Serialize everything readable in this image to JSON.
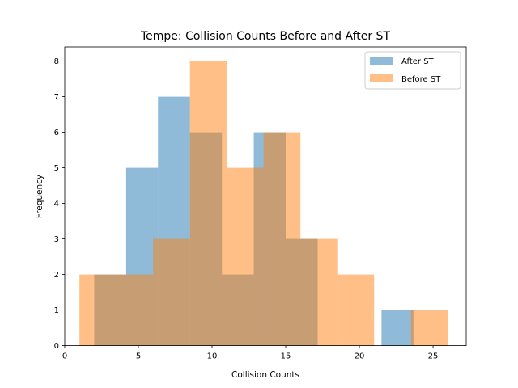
{
  "chart_data": {
    "type": "bar",
    "title": "Tempe: Collision Counts Before and After ST",
    "xlabel": "Collision Counts",
    "ylabel": "Frequency",
    "xlim": [
      0.0,
      27.25
    ],
    "ylim": [
      0,
      8.4
    ],
    "xticks": [
      0,
      5,
      10,
      15,
      20,
      25
    ],
    "yticks": [
      0,
      1,
      2,
      3,
      4,
      5,
      6,
      7,
      8
    ],
    "legend_position": "top-right",
    "series": [
      {
        "name": "After ST",
        "color": "#1f77b4",
        "alpha": 0.5,
        "bin_edges": [
          2.0,
          4.17,
          6.33,
          8.5,
          10.67,
          12.83,
          15.0,
          17.17,
          19.33,
          21.5,
          23.67
        ],
        "counts": [
          2,
          5,
          7,
          6,
          2,
          6,
          3,
          0,
          0,
          1
        ]
      },
      {
        "name": "Before ST",
        "color": "#ff7f0e",
        "alpha": 0.5,
        "bin_edges": [
          1.0,
          3.5,
          6.0,
          8.5,
          11.0,
          13.5,
          16.0,
          18.5,
          21.0,
          23.5,
          26.0
        ],
        "counts": [
          2,
          2,
          3,
          8,
          5,
          6,
          3,
          2,
          0,
          1
        ]
      }
    ]
  }
}
